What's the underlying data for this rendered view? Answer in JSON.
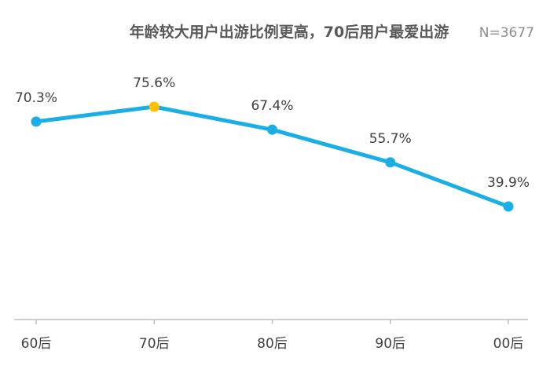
{
  "header": {
    "title": "年龄较大用户出游比例更高，70后用户最爱出游",
    "sample_size": "N=3677"
  },
  "colors": {
    "series": "#1aaee6",
    "highlight": "#ffc000",
    "axis": "#bfbfbf",
    "text": "#404040"
  },
  "chart_data": {
    "type": "line",
    "title": "年龄较大用户出游比例更高，70后用户最爱出游",
    "subtitle": "N=3677",
    "categories": [
      "60后",
      "70后",
      "80后",
      "90后",
      "00后"
    ],
    "values": [
      70.3,
      75.6,
      67.4,
      55.7,
      39.9
    ],
    "value_labels": [
      "70.3%",
      "75.6%",
      "67.4%",
      "55.7%",
      "39.9%"
    ],
    "highlight_index": 1,
    "xlabel": "",
    "ylabel": "",
    "grid": false,
    "legend": "none"
  }
}
